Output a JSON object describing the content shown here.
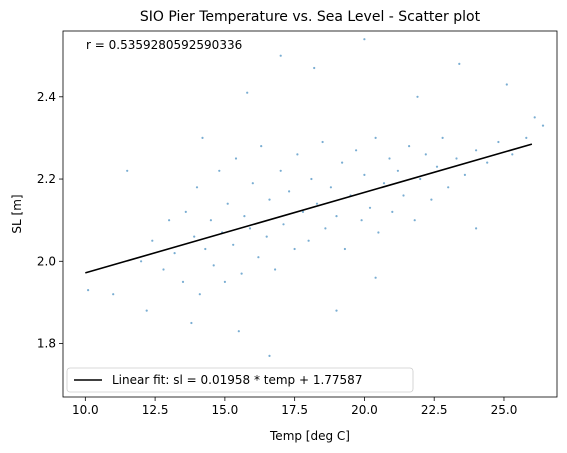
{
  "chart_data": {
    "type": "scatter",
    "title": "SIO Pier Temperature vs. Sea Level - Scatter plot",
    "xlabel": "Temp [deg C]",
    "ylabel": "SL [m]",
    "xlim": [
      9.2,
      26.9
    ],
    "ylim": [
      1.67,
      2.56
    ],
    "xticks": [
      10.0,
      12.5,
      15.0,
      17.5,
      20.0,
      22.5,
      25.0
    ],
    "xtick_labels": [
      "10.0",
      "12.5",
      "15.0",
      "17.5",
      "20.0",
      "22.5",
      "25.0"
    ],
    "yticks": [
      1.8,
      2.0,
      2.2,
      2.4
    ],
    "ytick_labels": [
      "1.8",
      "2.0",
      "2.2",
      "2.4"
    ],
    "grid": false,
    "annotation": "r = 0.5359280592590336",
    "legend": {
      "placement": "lower-left",
      "entries": [
        "Linear fit: sl = 0.01958 * temp + 1.77587"
      ]
    },
    "series": [
      {
        "kind": "scatter",
        "color": "#1f77b4",
        "alpha": 0.6,
        "points": [
          [
            12.0,
            2.0
          ],
          [
            12.4,
            2.05
          ],
          [
            12.8,
            1.98
          ],
          [
            13.0,
            2.1
          ],
          [
            13.2,
            2.02
          ],
          [
            13.5,
            1.95
          ],
          [
            13.6,
            2.12
          ],
          [
            13.9,
            2.06
          ],
          [
            14.0,
            2.18
          ],
          [
            14.1,
            1.92
          ],
          [
            14.3,
            2.03
          ],
          [
            14.5,
            2.1
          ],
          [
            14.6,
            1.99
          ],
          [
            14.8,
            2.22
          ],
          [
            14.9,
            2.07
          ],
          [
            15.0,
            1.95
          ],
          [
            15.1,
            2.14
          ],
          [
            15.3,
            2.04
          ],
          [
            15.4,
            2.25
          ],
          [
            15.6,
            1.97
          ],
          [
            15.7,
            2.11
          ],
          [
            15.9,
            2.08
          ],
          [
            16.0,
            2.19
          ],
          [
            16.2,
            2.01
          ],
          [
            16.3,
            2.28
          ],
          [
            16.5,
            2.06
          ],
          [
            16.6,
            2.15
          ],
          [
            16.8,
            1.98
          ],
          [
            17.0,
            2.22
          ],
          [
            17.1,
            2.09
          ],
          [
            17.3,
            2.17
          ],
          [
            17.5,
            2.03
          ],
          [
            17.6,
            2.26
          ],
          [
            17.8,
            2.12
          ],
          [
            18.0,
            2.05
          ],
          [
            18.1,
            2.2
          ],
          [
            18.3,
            2.14
          ],
          [
            18.5,
            2.29
          ],
          [
            18.6,
            2.08
          ],
          [
            18.8,
            2.18
          ],
          [
            19.0,
            2.11
          ],
          [
            19.2,
            2.24
          ],
          [
            19.3,
            2.03
          ],
          [
            19.5,
            2.16
          ],
          [
            19.7,
            2.27
          ],
          [
            19.9,
            2.1
          ],
          [
            20.0,
            2.21
          ],
          [
            20.2,
            2.13
          ],
          [
            20.4,
            2.3
          ],
          [
            20.5,
            2.07
          ],
          [
            20.7,
            2.19
          ],
          [
            20.9,
            2.25
          ],
          [
            21.0,
            2.12
          ],
          [
            21.2,
            2.22
          ],
          [
            21.4,
            2.16
          ],
          [
            21.6,
            2.28
          ],
          [
            21.8,
            2.1
          ],
          [
            22.0,
            2.2
          ],
          [
            22.2,
            2.26
          ],
          [
            22.4,
            2.15
          ],
          [
            22.6,
            2.23
          ],
          [
            22.8,
            2.3
          ],
          [
            23.0,
            2.18
          ],
          [
            23.3,
            2.25
          ],
          [
            23.6,
            2.21
          ],
          [
            24.0,
            2.27
          ],
          [
            24.4,
            2.24
          ],
          [
            24.8,
            2.29
          ],
          [
            25.3,
            2.26
          ],
          [
            25.8,
            2.3
          ],
          [
            10.1,
            1.93
          ],
          [
            11.5,
            2.22
          ],
          [
            13.8,
            1.85
          ],
          [
            14.2,
            2.3
          ],
          [
            15.5,
            1.83
          ],
          [
            15.8,
            2.41
          ],
          [
            16.6,
            1.77
          ],
          [
            17.0,
            2.5
          ],
          [
            18.2,
            2.47
          ],
          [
            19.0,
            1.88
          ],
          [
            20.0,
            2.54
          ],
          [
            20.4,
            1.96
          ],
          [
            21.9,
            2.4
          ],
          [
            23.4,
            2.48
          ],
          [
            24.0,
            2.08
          ],
          [
            25.1,
            2.43
          ],
          [
            26.1,
            2.35
          ],
          [
            26.4,
            2.33
          ],
          [
            12.2,
            1.88
          ],
          [
            11.0,
            1.92
          ]
        ]
      },
      {
        "kind": "line",
        "name": "Linear fit: sl = 0.01958 * temp + 1.77587",
        "color": "#000000",
        "x": [
          10.0,
          26.0
        ],
        "y": [
          1.9717,
          2.285
        ]
      }
    ]
  }
}
